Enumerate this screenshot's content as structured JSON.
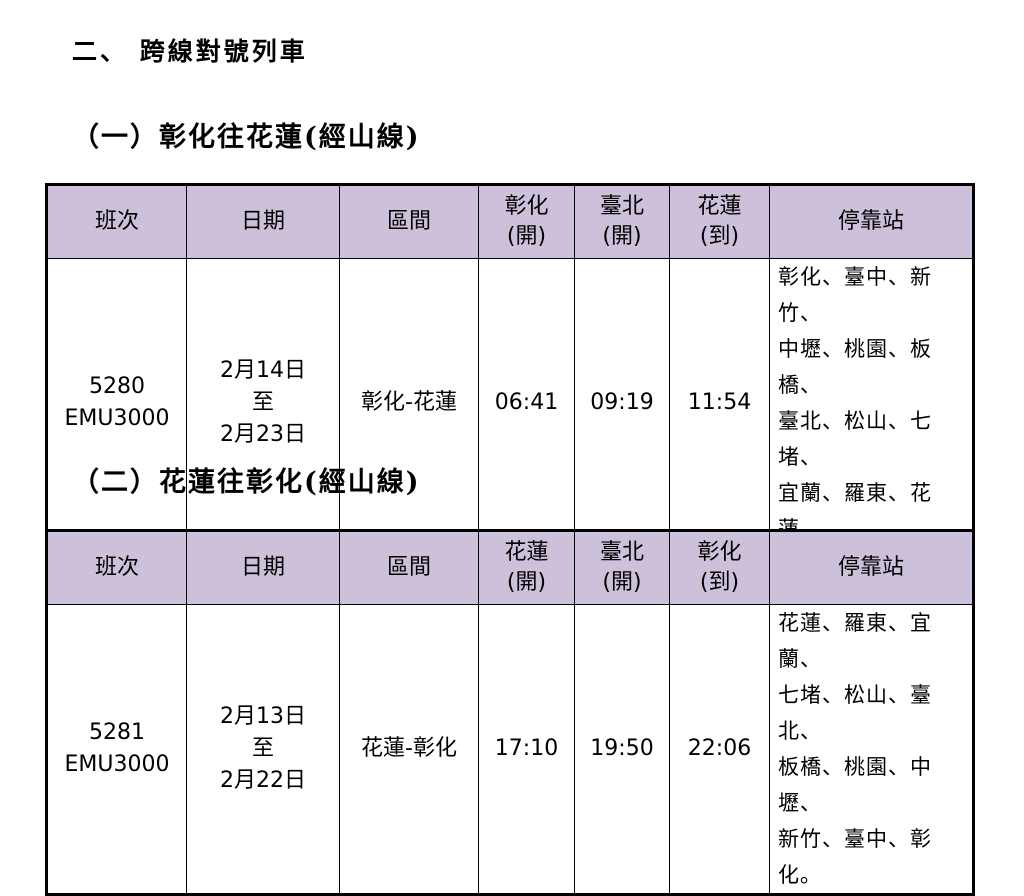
{
  "heading": "二、 跨線對號列車",
  "headers_template": [
    "班次",
    "日期",
    "區間"
  ],
  "sections": [
    {
      "title": "（一）彰化往花蓮(經山線)",
      "headers": [
        "班次",
        "日期",
        "區間",
        "彰化\n(開)",
        "臺北\n(開)",
        "花蓮\n(到)",
        "停靠站"
      ],
      "row": {
        "train": "5280",
        "type": "EMU3000",
        "date_from": "2月14日",
        "date_sep": "至",
        "date_to": "2月23日",
        "route": "彰化-花蓮",
        "t1": "06:41",
        "t2": "09:19",
        "t3": "11:54",
        "stops": [
          "彰化、臺中、新竹、",
          "中壢、桃園、板橋、",
          "臺北、松山、七堵、",
          "宜蘭、羅東、花蓮。"
        ]
      }
    },
    {
      "title": "（二）花蓮往彰化(經山線)",
      "headers": [
        "班次",
        "日期",
        "區間",
        "花蓮\n(開)",
        "臺北\n(開)",
        "彰化\n(到)",
        "停靠站"
      ],
      "row": {
        "train": "5281",
        "type": "EMU3000",
        "date_from": "2月13日",
        "date_sep": "至",
        "date_to": "2月22日",
        "route": "花蓮-彰化",
        "t1": "17:10",
        "t2": "19:50",
        "t3": "22:06",
        "stops": [
          "花蓮、羅東、宜蘭、",
          "七堵、松山、臺北、",
          "板橋、桃園、中壢、",
          "新竹、臺中、彰化。"
        ]
      }
    }
  ]
}
